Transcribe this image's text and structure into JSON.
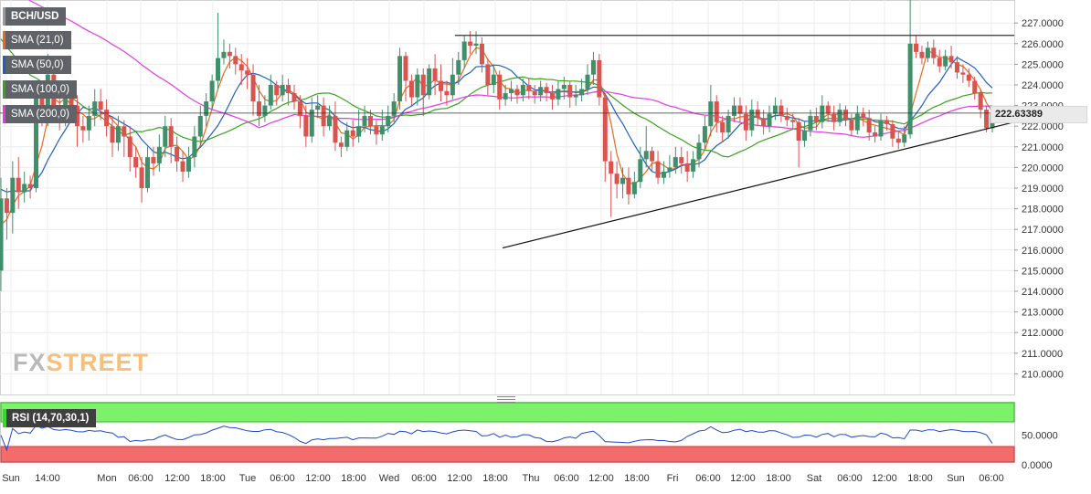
{
  "chart_data": {
    "type": "candlestick",
    "title": "BCH/USD",
    "series": [
      {
        "name": "SMA (21,0)",
        "color": "#e86a1c"
      },
      {
        "name": "SMA (50,0)",
        "color": "#1f5fbf"
      },
      {
        "name": "SMA (100,0)",
        "color": "#3aa21c"
      },
      {
        "name": "SMA (200,0)",
        "color": "#e33ae3"
      }
    ],
    "last_price": "222.63389",
    "y_ticks": [
      "227.0000",
      "226.0000",
      "225.0000",
      "224.0000",
      "223.0000",
      "222.0000",
      "221.0000",
      "220.0000",
      "219.0000",
      "218.0000",
      "217.0000",
      "216.0000",
      "215.0000",
      "214.0000",
      "213.0000",
      "212.0000",
      "211.0000",
      "210.0000"
    ],
    "ylim": [
      209.2,
      227.9
    ],
    "x_ticks": [
      "Sun",
      "14:00",
      "Mon",
      "06:00",
      "12:00",
      "18:00",
      "Tue",
      "06:00",
      "12:00",
      "18:00",
      "Wed",
      "06:00",
      "12:00",
      "18:00",
      "Thu",
      "06:00",
      "12:00",
      "18:00",
      "Fri",
      "06:00",
      "12:00",
      "18:00",
      "Sat",
      "06:00",
      "12:00",
      "18:00",
      "Sun",
      "06:00"
    ],
    "resistance_level": 226.4,
    "support_trendline": [
      [
        550,
        216.1
      ],
      [
        1110,
        222.2
      ]
    ],
    "candles": [
      [
        215,
        218.5,
        214,
        219.5
      ],
      [
        218.5,
        217.8,
        216.5,
        219
      ],
      [
        217.8,
        219.5,
        216.8,
        220.3
      ],
      [
        219.5,
        218.8,
        218,
        220.5
      ],
      [
        218.8,
        219.2,
        218.3,
        219.8
      ],
      [
        219.2,
        219,
        218.5,
        219.6
      ],
      [
        219,
        223.5,
        218.8,
        224
      ],
      [
        223.5,
        222.5,
        222,
        224.2
      ],
      [
        222.5,
        224.5,
        222,
        225.5
      ],
      [
        224.5,
        223,
        222.5,
        225
      ],
      [
        223,
        222.5,
        221.8,
        223.5
      ],
      [
        222.5,
        223.5,
        222,
        224
      ],
      [
        223.5,
        223,
        222.3,
        224
      ],
      [
        223,
        222,
        221,
        223.5
      ],
      [
        222,
        221.8,
        221.2,
        222.5
      ],
      [
        221.8,
        222.5,
        221.3,
        223
      ],
      [
        222.5,
        223.2,
        222,
        223.8
      ],
      [
        223.2,
        222.8,
        222.3,
        223.8
      ],
      [
        222.8,
        222,
        221.5,
        223.3
      ],
      [
        222,
        221.2,
        220.5,
        222.5
      ],
      [
        221.2,
        222,
        220.8,
        222.5
      ],
      [
        222,
        221.5,
        220.5,
        222.3
      ],
      [
        221.5,
        220.5,
        219.8,
        222
      ],
      [
        220.5,
        220,
        219.5,
        221
      ],
      [
        220,
        219,
        218.3,
        220.5
      ],
      [
        219,
        220.5,
        218.8,
        221
      ],
      [
        220.5,
        220.2,
        219.6,
        221
      ],
      [
        220.2,
        221,
        219.8,
        221.6
      ],
      [
        221,
        222,
        220.5,
        222.5
      ],
      [
        222,
        221,
        220.2,
        222.4
      ],
      [
        221,
        220.3,
        219.8,
        221.5
      ],
      [
        220.3,
        219.8,
        219.3,
        220.8
      ],
      [
        219.8,
        220.5,
        219.5,
        221
      ],
      [
        220.5,
        221.5,
        220,
        222
      ],
      [
        221.5,
        222.5,
        221,
        223
      ],
      [
        222.5,
        223.2,
        222,
        223.6
      ],
      [
        223.2,
        224.2,
        222.8,
        224.5
      ],
      [
        224.2,
        225.3,
        223.8,
        227.5
      ],
      [
        225.3,
        225.6,
        225,
        226.2
      ],
      [
        225.6,
        225.4,
        224.8,
        226
      ],
      [
        225.4,
        225,
        224.5,
        225.8
      ],
      [
        225,
        224.7,
        224,
        225.5
      ],
      [
        224.7,
        224.5,
        223.8,
        225.3
      ],
      [
        224.5,
        223.2,
        222.5,
        225
      ],
      [
        223.2,
        222.5,
        222,
        224
      ],
      [
        222.5,
        223,
        222.2,
        223.5
      ],
      [
        223,
        224,
        222.8,
        224.5
      ],
      [
        224,
        223.5,
        223,
        224.2
      ],
      [
        223.5,
        224,
        223.2,
        224.5
      ],
      [
        224,
        223.6,
        223,
        224.3
      ],
      [
        223.6,
        223.2,
        222.8,
        224
      ],
      [
        223.2,
        222.5,
        221.9,
        223.5
      ],
      [
        222.5,
        221.5,
        221,
        223
      ],
      [
        221.5,
        222.8,
        221.2,
        223.4
      ],
      [
        222.8,
        223,
        222.4,
        223.5
      ],
      [
        223,
        222,
        221.5,
        223.4
      ],
      [
        222,
        222.5,
        221.8,
        223
      ],
      [
        222.5,
        221.2,
        220.8,
        223.2
      ],
      [
        221.2,
        221,
        220.5,
        221.5
      ],
      [
        221,
        221.8,
        220.8,
        222.2
      ],
      [
        221.8,
        221.5,
        221,
        222.3
      ],
      [
        221.5,
        222,
        221.2,
        222.8
      ],
      [
        222,
        222.5,
        221.7,
        223
      ],
      [
        222.5,
        222,
        221.6,
        222.8
      ],
      [
        222,
        221.6,
        221.1,
        222.3
      ],
      [
        221.6,
        222,
        221.3,
        222.8
      ],
      [
        222,
        222.5,
        221.7,
        223
      ],
      [
        222.5,
        223.2,
        222.2,
        223.6
      ],
      [
        223.2,
        225.4,
        222.8,
        225.8
      ],
      [
        225.4,
        224.2,
        223.2,
        225.6
      ],
      [
        224.2,
        223.4,
        223,
        224.5
      ],
      [
        223.4,
        224.5,
        223,
        224.8
      ],
      [
        224.5,
        223.5,
        222.5,
        224.8
      ],
      [
        223.5,
        224.8,
        223.3,
        225
      ],
      [
        224.8,
        224.2,
        223.5,
        225.5
      ],
      [
        224.2,
        223.7,
        223.2,
        225
      ],
      [
        223.7,
        223.5,
        223,
        224.2
      ],
      [
        223.5,
        224.5,
        223.3,
        225.3
      ],
      [
        224.5,
        225.2,
        224,
        225.6
      ],
      [
        225.2,
        226.1,
        224.8,
        226.4
      ],
      [
        226.1,
        225.9,
        225.5,
        226.6
      ],
      [
        225.9,
        226,
        225.5,
        226.6
      ],
      [
        226,
        225,
        224.6,
        226.3
      ],
      [
        225,
        224,
        223.5,
        225.3
      ],
      [
        224,
        224.5,
        223.6,
        225
      ],
      [
        224.5,
        223.3,
        222.8,
        224.7
      ],
      [
        223.3,
        223.6,
        223,
        224
      ],
      [
        223.6,
        223.8,
        223.2,
        224.2
      ],
      [
        223.8,
        223.5,
        223.1,
        224
      ],
      [
        223.5,
        224,
        223.2,
        224.3
      ],
      [
        224,
        223.7,
        223.3,
        224.3
      ],
      [
        223.7,
        223.5,
        223.1,
        224
      ],
      [
        223.5,
        223.9,
        223.2,
        224.2
      ],
      [
        223.9,
        223.6,
        223.2,
        224.1
      ],
      [
        223.6,
        223.3,
        222.8,
        224
      ],
      [
        223.3,
        223.8,
        223,
        224.2
      ],
      [
        223.8,
        224,
        223.3,
        224.4
      ],
      [
        224,
        223.4,
        222.9,
        224.2
      ],
      [
        223.4,
        223.5,
        223,
        224
      ],
      [
        223.5,
        223.8,
        223.2,
        224.3
      ],
      [
        223.8,
        224.5,
        223.5,
        225
      ],
      [
        224.5,
        225.2,
        224,
        225.6
      ],
      [
        225.2,
        223.4,
        223,
        225.5
      ],
      [
        223.4,
        220.3,
        219.3,
        223.6
      ],
      [
        220.3,
        219.7,
        217.6,
        220.8
      ],
      [
        219.7,
        219.2,
        218.5,
        220.3
      ],
      [
        219.2,
        219.5,
        218.5,
        220
      ],
      [
        219.5,
        218.7,
        218.2,
        220
      ],
      [
        218.7,
        219.3,
        218.5,
        219.8
      ],
      [
        219.3,
        220.4,
        219,
        221
      ],
      [
        220.4,
        220.8,
        220,
        222
      ],
      [
        220.8,
        220.3,
        219.8,
        221
      ],
      [
        220.3,
        219.5,
        219.2,
        220.8
      ],
      [
        219.5,
        219.8,
        219.2,
        220.3
      ],
      [
        219.8,
        220,
        219.5,
        220.6
      ],
      [
        220,
        220.5,
        219.7,
        221
      ],
      [
        220.5,
        220.2,
        219.7,
        221
      ],
      [
        220.2,
        219.8,
        219.3,
        220.8
      ],
      [
        219.8,
        220.4,
        219.5,
        220.8
      ],
      [
        220.4,
        221.2,
        220,
        221.6
      ],
      [
        221.2,
        222,
        220.9,
        222.5
      ],
      [
        222,
        223.2,
        221.5,
        224
      ],
      [
        223.2,
        222.2,
        221.7,
        223.5
      ],
      [
        222.2,
        221.7,
        221.2,
        222.5
      ],
      [
        221.7,
        222.5,
        221.4,
        222.8
      ],
      [
        222.5,
        223,
        222.2,
        223.4
      ],
      [
        223,
        222.6,
        222.2,
        223.4
      ],
      [
        222.6,
        221.8,
        221.3,
        223
      ],
      [
        221.8,
        222.8,
        221.5,
        223.3
      ],
      [
        222.8,
        222.4,
        222,
        223.2
      ],
      [
        222.4,
        222,
        221.6,
        222.8
      ],
      [
        222,
        222.6,
        221.7,
        223
      ],
      [
        222.6,
        223,
        222.3,
        223.4
      ],
      [
        223,
        222.5,
        222.2,
        223.3
      ],
      [
        222.5,
        222.3,
        222,
        222.9
      ],
      [
        222.3,
        222.2,
        221.9,
        222.6
      ],
      [
        222.2,
        221.3,
        220,
        222.4
      ],
      [
        221.3,
        221.8,
        221,
        222.2
      ],
      [
        221.8,
        222.5,
        221.5,
        222.8
      ],
      [
        222.5,
        222.2,
        221.8,
        222.9
      ],
      [
        222.2,
        223,
        221.9,
        223.5
      ],
      [
        223,
        222.6,
        222.2,
        223.2
      ],
      [
        222.6,
        222.2,
        221.8,
        223
      ],
      [
        222.2,
        222.8,
        222,
        223.1
      ],
      [
        222.8,
        222.3,
        222,
        223
      ],
      [
        222.3,
        221.8,
        221.5,
        222.6
      ],
      [
        221.8,
        222.6,
        221.6,
        223
      ],
      [
        222.6,
        222.4,
        222,
        222.9
      ],
      [
        222.4,
        221.7,
        221.3,
        222.8
      ],
      [
        221.7,
        221.5,
        221.2,
        222
      ],
      [
        221.5,
        222.3,
        221.3,
        222.6
      ],
      [
        222.3,
        222.1,
        221.8,
        222.5
      ],
      [
        222.1,
        221.4,
        221,
        222.3
      ],
      [
        221.4,
        221.2,
        220.9,
        221.8
      ],
      [
        221.2,
        221.6,
        221,
        222
      ],
      [
        221.6,
        226,
        221.4,
        228.2
      ],
      [
        226,
        225.6,
        225.3,
        226.4
      ],
      [
        225.6,
        225.3,
        225,
        225.9
      ],
      [
        225.3,
        225.8,
        225.1,
        226.1
      ],
      [
        225.8,
        225.3,
        225,
        226.2
      ],
      [
        225.3,
        224.9,
        224.6,
        225.7
      ],
      [
        224.9,
        225.4,
        224.7,
        225.7
      ],
      [
        225.4,
        225.1,
        224.8,
        225.9
      ],
      [
        225.1,
        224.6,
        224.3,
        225.4
      ],
      [
        224.6,
        224.5,
        224.1,
        225
      ],
      [
        224.5,
        224.2,
        223.9,
        224.8
      ],
      [
        224.2,
        223.6,
        223.3,
        224.4
      ],
      [
        223.6,
        222.8,
        222.4,
        223.8
      ],
      [
        222.8,
        221.9,
        221.7,
        223
      ],
      [
        221.9,
        222.6,
        221.7,
        222.9
      ]
    ],
    "rsi": {
      "name": "RSI (14,70,30,1)",
      "y_ticks": [
        "50.0000",
        "0.0000"
      ],
      "overbought": 70,
      "oversold": 30,
      "color": "#1f49c7"
    }
  },
  "watermark": {
    "fx": "FX",
    "street": "STREET"
  }
}
